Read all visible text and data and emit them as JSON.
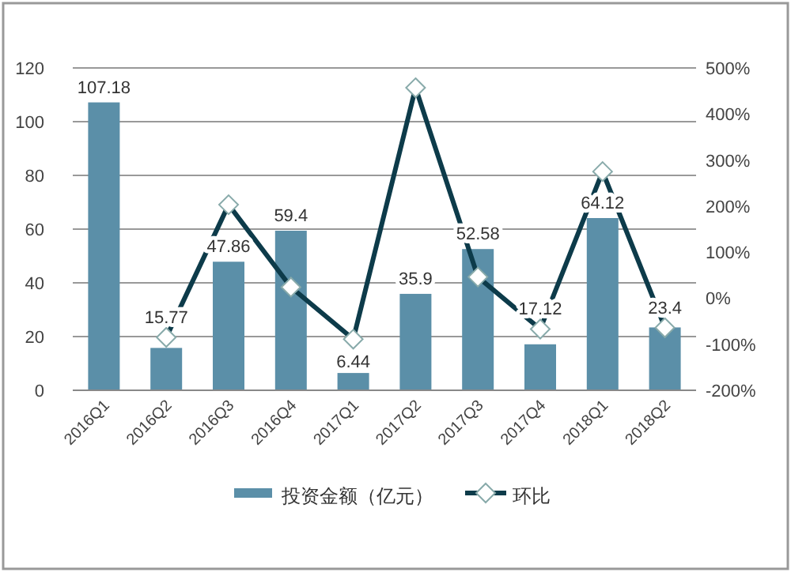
{
  "chart_data": {
    "type": "bar",
    "categories": [
      "2016Q1",
      "2016Q2",
      "2016Q3",
      "2016Q4",
      "2017Q1",
      "2017Q2",
      "2017Q3",
      "2017Q4",
      "2018Q1",
      "2018Q2"
    ],
    "series": [
      {
        "name": "投资金额（亿元）",
        "color": "#5b8fa8",
        "values": [
          107.18,
          15.77,
          47.86,
          59.4,
          6.44,
          35.9,
          52.58,
          17.12,
          64.12,
          23.4
        ],
        "value_labels": [
          "107.18",
          "15.77",
          "47.86",
          "59.4",
          "6.44",
          "35.9",
          "52.58",
          "17.12",
          "64.12",
          "23.4"
        ]
      },
      {
        "name": "环比",
        "type": "line",
        "axis": "y2",
        "color": "#0d3b4a",
        "marker": "diamond",
        "values": [
          null,
          -85,
          203,
          24,
          -89,
          457,
          46,
          -67,
          275,
          -64
        ]
      }
    ],
    "ylim": [
      0,
      120
    ],
    "yticks": [
      0,
      20,
      40,
      60,
      80,
      100,
      120
    ],
    "y2lim": [
      -200,
      500
    ],
    "y2ticks": [
      {
        "value": -200,
        "label": "-200%"
      },
      {
        "value": -100,
        "label": "-100%"
      },
      {
        "value": 0,
        "label": "0%"
      },
      {
        "value": 100,
        "label": "100%"
      },
      {
        "value": 200,
        "label": "200%"
      },
      {
        "value": 300,
        "label": "300%"
      },
      {
        "value": 400,
        "label": "400%"
      },
      {
        "value": 500,
        "label": "500%"
      }
    ],
    "grid": "y",
    "legend": "bottom"
  }
}
